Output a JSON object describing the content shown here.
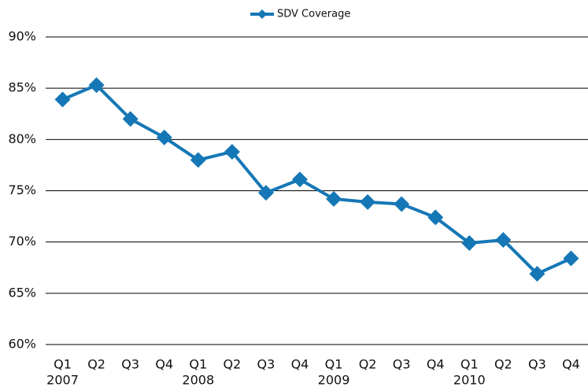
{
  "chart_data": {
    "type": "line",
    "categories": [
      "Q1",
      "Q2",
      "Q3",
      "Q4",
      "Q1",
      "Q2",
      "Q3",
      "Q4",
      "Q1",
      "Q2",
      "Q3",
      "Q4",
      "Q1",
      "Q2",
      "Q3",
      "Q4"
    ],
    "category_groups": [
      "2007",
      "2008",
      "2009",
      "2010"
    ],
    "series": [
      {
        "name": "SDV Coverage",
        "color": "#1577b6",
        "values": [
          83.9,
          85.3,
          82.0,
          80.2,
          78.0,
          78.8,
          74.8,
          76.1,
          74.2,
          73.9,
          73.7,
          72.4,
          69.9,
          70.2,
          66.9,
          68.4
        ]
      }
    ],
    "ylim": [
      60,
      90
    ],
    "yticks": [
      {
        "value": 60,
        "label": "60%"
      },
      {
        "value": 65,
        "label": "65%"
      },
      {
        "value": 70,
        "label": "70%"
      },
      {
        "value": 75,
        "label": "75%"
      },
      {
        "value": 80,
        "label": "80%"
      },
      {
        "value": 85,
        "label": "85%"
      },
      {
        "value": 90,
        "label": "90%"
      }
    ],
    "grid": true,
    "legend": "top"
  }
}
